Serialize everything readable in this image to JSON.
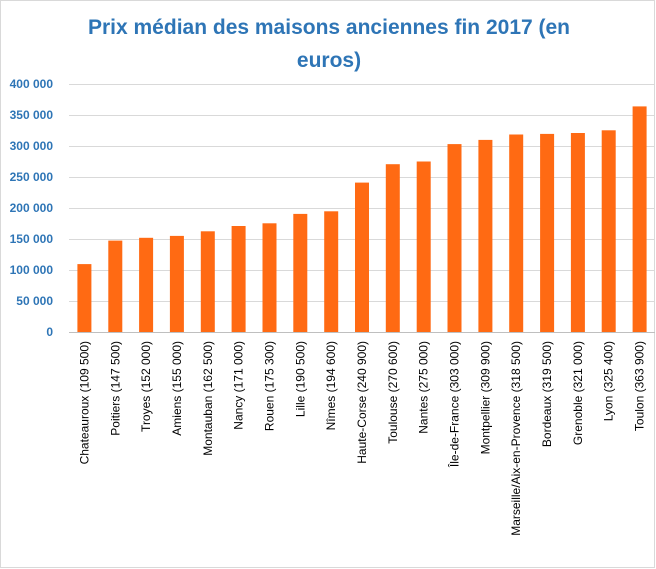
{
  "chart_data": {
    "type": "bar",
    "title": "Prix médian des maisons anciennes fin 2017 (en euros)",
    "xlabel": "",
    "ylabel": "",
    "ylim": [
      0,
      400000
    ],
    "y_ticks": [
      0,
      50000,
      100000,
      150000,
      200000,
      250000,
      300000,
      350000,
      400000
    ],
    "y_tick_labels": [
      "0",
      "50 000",
      "100 000",
      "150 000",
      "200 000",
      "250 000",
      "300 000",
      "350 000",
      "400 000"
    ],
    "grid": true,
    "legend": "none",
    "categories": [
      "Chateauroux (109 500)",
      "Poitiers (147 500)",
      "Troyes (152 000)",
      "Amiens (155 000)",
      "Montauban (162 500)",
      "Nancy (171 000)",
      "Rouen (175 300)",
      "Lille (190 500)",
      "Nîmes (194 600)",
      "Haute-Corse (240 900)",
      "Toulouse (270 600)",
      "Nantes (275 000)",
      "Île-de-France (303 000)",
      "Montpellier (309 900)",
      "Marseille/Aix-en-Provence (318 500)",
      "Bordeaux (319 500)",
      "Grenoble (321 000)",
      "Lyon (325 400)",
      "Toulon (363 900)"
    ],
    "values": [
      109500,
      147500,
      152000,
      155000,
      162500,
      171000,
      175300,
      190500,
      194600,
      240900,
      270600,
      275000,
      303000,
      309900,
      318500,
      319500,
      321000,
      325400,
      363900
    ],
    "colors": {
      "bar": "#ff6a13",
      "grid": "#d9d9d9",
      "title": "#2e75b6",
      "y_tick_text": "#2e75b6",
      "x_tick_text": "#000000"
    }
  }
}
